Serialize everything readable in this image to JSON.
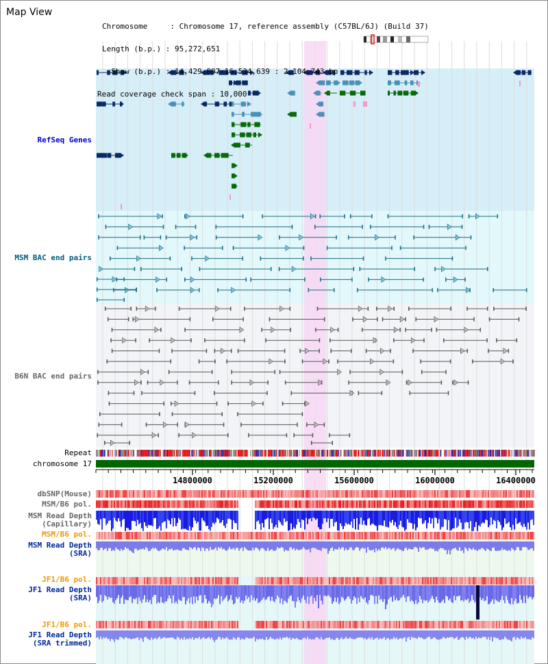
{
  "header": {
    "title": "Map View",
    "lines": [
      "Chromosome     : Chromosome 17, reference assembly (C57BL/6J) (Build 37)",
      "Length (b.p.) : 95,272,651",
      "  Show (b.p.) : 14,429,897-16,534,639 : 2,104,743 bp",
      "Read coverage check span : 10,000"
    ]
  },
  "tracks": {
    "refseq": "RefSeq Genes",
    "msm_bac": "MSM BAC end pairs",
    "b6n_bac": "B6N BAC end pairs",
    "repeat": "Repeat",
    "chromosome": "chromosome 17",
    "dbsnp": "dbSNP(Mouse)",
    "msm_b6_pol": "MSM/B6 pol.",
    "msm_read_depth_cap": "MSM Read Depth\n(Capillary)",
    "msm_b6_pol_2": "MSM/B6 pol.",
    "msm_read_depth_sra": "MSM Read Depth\n(SRA)",
    "jf1_b6_pol": "JF1/B6 pol.",
    "jf1_read_depth_sra": "JF1 Read Depth\n(SRA)",
    "jf1_b6_pol_2": "JF1/B6 pol.",
    "jf1_read_depth_trim": "JF1 Read Depth\n(SRA trimmed)"
  },
  "axis": {
    "ticks": [
      "14800000",
      "15200000",
      "15600000",
      "16000000",
      "16400000"
    ]
  },
  "colors": {
    "refseq_bg": "#d6eef8",
    "msm_bg": "#e2f8fb",
    "b6n_bg": "#f2f4f7",
    "highlight": "#f7d7f3",
    "chrom_green": "#006600",
    "gene_navy": "#0a2a66",
    "gene_steel": "#4a90b8",
    "gene_green": "#0a6a0a"
  }
}
